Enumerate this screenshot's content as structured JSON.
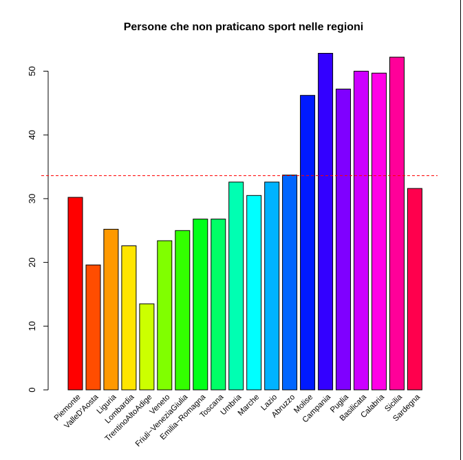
{
  "chart_data": {
    "type": "bar",
    "title": "Persone che non praticano sport nelle regioni",
    "xlabel": "",
    "ylabel": "",
    "ylim": [
      0,
      53
    ],
    "yticks": [
      "0",
      "10",
      "20",
      "30",
      "40",
      "50"
    ],
    "categories": [
      "Piemonte",
      "ValleD'Aosta",
      "Liguria",
      "Lombardia",
      "TrentinoAltoAdige",
      "Veneto",
      "Friuli−VeneziaGiulia",
      "Emilia−Romagna",
      "Toscana",
      "Umbria",
      "Marche",
      "Lazio",
      "Abruzzo",
      "Molise",
      "Campania",
      "Puglia",
      "Basilicata",
      "Calabria",
      "Sicilia",
      "Sardegna"
    ],
    "values": [
      30.2,
      19.6,
      25.2,
      22.6,
      13.5,
      23.4,
      25.0,
      26.8,
      26.8,
      32.6,
      30.5,
      32.6,
      33.7,
      46.2,
      52.8,
      47.2,
      50.0,
      49.7,
      52.2,
      31.6
    ],
    "colors": [
      "#FF0000",
      "#FF4D00",
      "#FF9900",
      "#FFE500",
      "#CCFF00",
      "#80FF00",
      "#33FF00",
      "#00FF19",
      "#00FF66",
      "#00FFB2",
      "#00FFFF",
      "#00B3FF",
      "#0066FF",
      "#001AFF",
      "#3300FF",
      "#7F00FF",
      "#CC00FF",
      "#FF00E6",
      "#FF0099",
      "#FF004D"
    ],
    "reference_line": {
      "value": 33.6,
      "color": "#FF0000",
      "style": "dashed"
    },
    "grid": false,
    "legend": "none"
  }
}
